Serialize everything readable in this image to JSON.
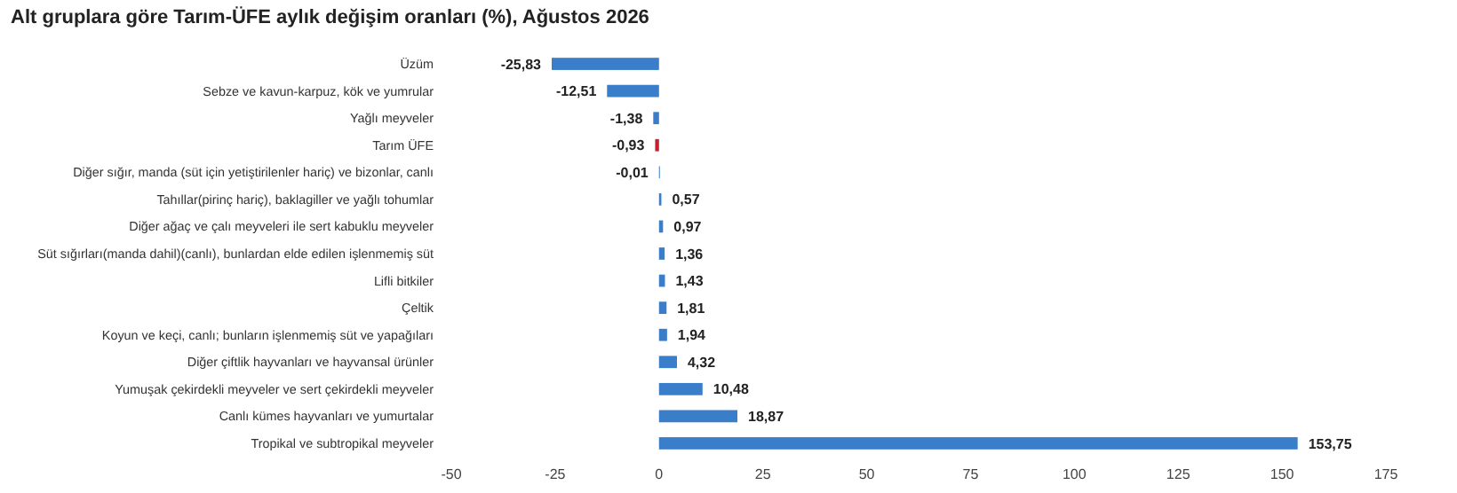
{
  "chart_data": {
    "type": "bar",
    "orientation": "horizontal",
    "title": "Alt gruplara göre Tarım-ÜFE aylık değişim oranları (%), Ağustos 2026",
    "categories": [
      "Üzüm",
      "Sebze ve kavun-karpuz, kök ve yumrular",
      "Yağlı meyveler",
      "Tarım ÜFE",
      "Diğer sığır, manda (süt için yetiştirilenler hariç) ve bizonlar, canlı",
      "Tahıllar(pirinç hariç), baklagiller ve yağlı tohumlar",
      "Diğer ağaç ve çalı meyveleri ile sert kabuklu meyveler",
      "Süt sığırları(manda dahil)(canlı), bunlardan elde edilen işlenmemiş süt",
      "Lifli bitkiler",
      "Çeltik",
      "Koyun ve keçi, canlı; bunların işlenmemiş süt ve yapağıları",
      "Diğer çiftlik hayvanları ve hayvansal ürünler",
      "Yumuşak çekirdekli meyveler ve sert çekirdekli meyveler",
      "Canlı kümes hayvanları ve yumurtalar",
      "Tropikal ve subtropikal meyveler"
    ],
    "values": [
      -25.83,
      -12.51,
      -1.38,
      -0.93,
      -0.01,
      0.57,
      0.97,
      1.36,
      1.43,
      1.81,
      1.94,
      4.32,
      10.48,
      18.87,
      153.75
    ],
    "value_labels": [
      "-25,83",
      "-12,51",
      "-1,38",
      "-0,93",
      "-0,01",
      "0,57",
      "0,97",
      "1,36",
      "1,43",
      "1,81",
      "1,94",
      "4,32",
      "10,48",
      "18,87",
      "153,75"
    ],
    "colors": [
      "#3a7dc9",
      "#3a7dc9",
      "#3a7dc9",
      "#c8202e",
      "#3a7dc9",
      "#3a7dc9",
      "#3a7dc9",
      "#3a7dc9",
      "#3a7dc9",
      "#3a7dc9",
      "#3a7dc9",
      "#3a7dc9",
      "#3a7dc9",
      "#3a7dc9",
      "#3a7dc9"
    ],
    "xlim": [
      -50,
      175
    ],
    "xticks": [
      -50,
      -25,
      0,
      25,
      50,
      75,
      100,
      125,
      150,
      175
    ],
    "grid": false
  }
}
